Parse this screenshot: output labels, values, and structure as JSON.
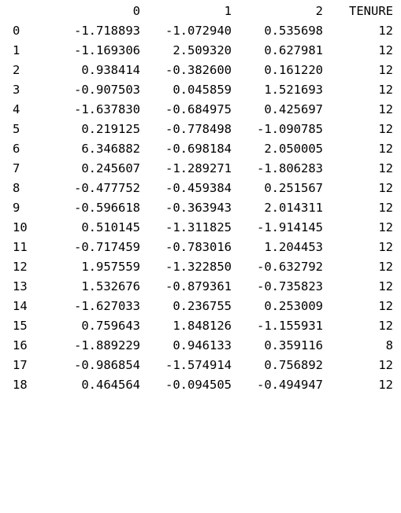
{
  "table": {
    "columns": [
      "0",
      "1",
      "2",
      "TENURE"
    ],
    "rows": [
      {
        "index": "0",
        "values": [
          "-1.718893",
          "-1.072940",
          "0.535698",
          "12"
        ]
      },
      {
        "index": "1",
        "values": [
          "-1.169306",
          "2.509320",
          "0.627981",
          "12"
        ]
      },
      {
        "index": "2",
        "values": [
          "0.938414",
          "-0.382600",
          "0.161220",
          "12"
        ]
      },
      {
        "index": "3",
        "values": [
          "-0.907503",
          "0.045859",
          "1.521693",
          "12"
        ]
      },
      {
        "index": "4",
        "values": [
          "-1.637830",
          "-0.684975",
          "0.425697",
          "12"
        ]
      },
      {
        "index": "5",
        "values": [
          "0.219125",
          "-0.778498",
          "-1.090785",
          "12"
        ]
      },
      {
        "index": "6",
        "values": [
          "6.346882",
          "-0.698184",
          "2.050005",
          "12"
        ]
      },
      {
        "index": "7",
        "values": [
          "0.245607",
          "-1.289271",
          "-1.806283",
          "12"
        ]
      },
      {
        "index": "8",
        "values": [
          "-0.477752",
          "-0.459384",
          "0.251567",
          "12"
        ]
      },
      {
        "index": "9",
        "values": [
          "-0.596618",
          "-0.363943",
          "2.014311",
          "12"
        ]
      },
      {
        "index": "10",
        "values": [
          "0.510145",
          "-1.311825",
          "-1.914145",
          "12"
        ]
      },
      {
        "index": "11",
        "values": [
          "-0.717459",
          "-0.783016",
          "1.204453",
          "12"
        ]
      },
      {
        "index": "12",
        "values": [
          "1.957559",
          "-1.322850",
          "-0.632792",
          "12"
        ]
      },
      {
        "index": "13",
        "values": [
          "1.532676",
          "-0.879361",
          "-0.735823",
          "12"
        ]
      },
      {
        "index": "14",
        "values": [
          "-1.627033",
          "0.236755",
          "0.253009",
          "12"
        ]
      },
      {
        "index": "15",
        "values": [
          "0.759643",
          "1.848126",
          "-1.155931",
          "12"
        ]
      },
      {
        "index": "16",
        "values": [
          "-1.889229",
          "0.946133",
          "0.359116",
          "8"
        ]
      },
      {
        "index": "17",
        "values": [
          "-0.986854",
          "-1.574914",
          "0.756892",
          "12"
        ]
      },
      {
        "index": "18",
        "values": [
          "0.464564",
          "-0.094505",
          "-0.494947",
          "12"
        ]
      }
    ]
  }
}
